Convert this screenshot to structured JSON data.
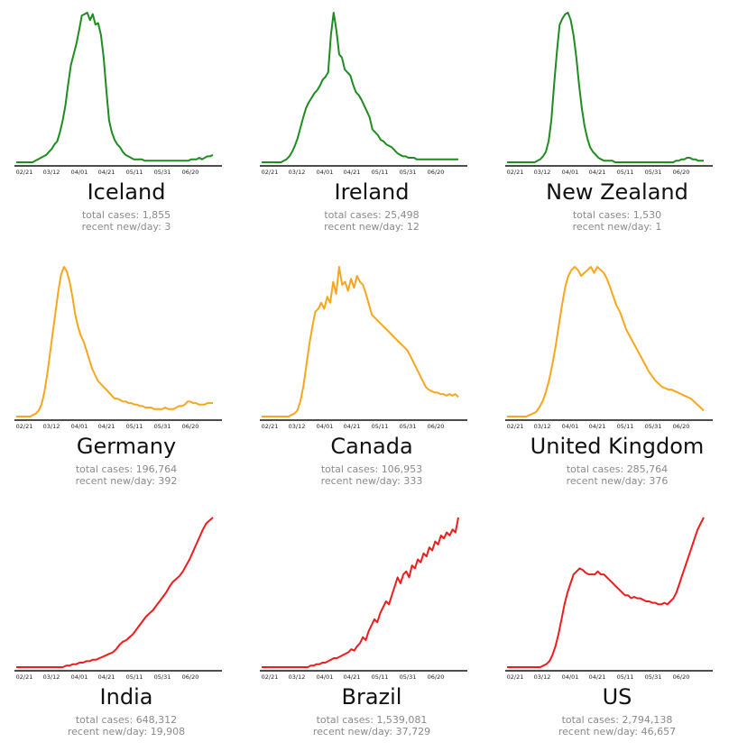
{
  "colors": {
    "low": "#1e8c1e",
    "mid": "#f8a61c",
    "high": "#ee1c1c"
  },
  "labels": {
    "total_prefix": "total cases: ",
    "recent_prefix": "recent new/day: "
  },
  "chart_data": [
    {
      "type": "line",
      "country": "Iceland",
      "color_key": "low",
      "total_cases": "1,855",
      "recent_new_per_day": "3",
      "x_ticks": [
        "02/21",
        "03/12",
        "04/01",
        "04/21",
        "05/11",
        "05/31",
        "06/20"
      ],
      "y": [
        0,
        0,
        0,
        0,
        0,
        0,
        0,
        1,
        2,
        3,
        4,
        5,
        7,
        9,
        12,
        14,
        20,
        28,
        38,
        52,
        65,
        72,
        79,
        88,
        98,
        99,
        100,
        95,
        99,
        92,
        93,
        85,
        70,
        48,
        28,
        20,
        15,
        12,
        10,
        7,
        5,
        4,
        3,
        2,
        2,
        2,
        2,
        1,
        1,
        1,
        1,
        1,
        1,
        1,
        1,
        1,
        1,
        1,
        1,
        1,
        1,
        1,
        1,
        1,
        2,
        2,
        2,
        3,
        2,
        3,
        4,
        4,
        5
      ]
    },
    {
      "type": "line",
      "country": "Ireland",
      "color_key": "low",
      "total_cases": "25,498",
      "recent_new_per_day": "12",
      "x_ticks": [
        "02/21",
        "03/12",
        "04/01",
        "04/21",
        "05/11",
        "05/31",
        "06/20"
      ],
      "y": [
        0,
        0,
        0,
        0,
        0,
        0,
        0,
        0,
        1,
        2,
        4,
        7,
        11,
        16,
        23,
        30,
        36,
        40,
        43,
        46,
        48,
        51,
        55,
        57,
        60,
        85,
        100,
        88,
        72,
        70,
        62,
        60,
        58,
        52,
        47,
        45,
        42,
        38,
        34,
        30,
        22,
        20,
        18,
        15,
        14,
        12,
        11,
        10,
        8,
        6,
        5,
        4,
        4,
        3,
        3,
        3,
        2,
        2,
        2,
        2,
        2,
        2,
        2,
        2,
        2,
        2,
        2,
        2,
        2,
        2,
        2,
        2
      ]
    },
    {
      "type": "line",
      "country": "New Zealand",
      "color_key": "low",
      "total_cases": "1,530",
      "recent_new_per_day": "1",
      "x_ticks": [
        "02/21",
        "03/12",
        "04/01",
        "04/21",
        "05/11",
        "05/31",
        "06/20"
      ],
      "y": [
        0,
        0,
        0,
        0,
        0,
        0,
        0,
        0,
        0,
        0,
        0,
        1,
        2,
        4,
        7,
        14,
        28,
        52,
        74,
        92,
        96,
        99,
        100,
        95,
        85,
        70,
        52,
        36,
        24,
        16,
        10,
        7,
        5,
        3,
        2,
        1,
        1,
        1,
        1,
        0,
        0,
        0,
        0,
        0,
        0,
        0,
        0,
        0,
        0,
        0,
        0,
        0,
        0,
        0,
        0,
        0,
        0,
        0,
        0,
        0,
        0,
        1,
        1,
        2,
        2,
        3,
        3,
        2,
        2,
        1,
        1,
        1
      ]
    },
    {
      "type": "line",
      "country": "Germany",
      "color_key": "mid",
      "total_cases": "196,764",
      "recent_new_per_day": "392",
      "x_ticks": [
        "02/21",
        "03/12",
        "04/01",
        "04/21",
        "05/11",
        "05/31",
        "06/20"
      ],
      "y": [
        0,
        0,
        0,
        0,
        0,
        0,
        1,
        2,
        4,
        8,
        16,
        28,
        42,
        56,
        70,
        84,
        95,
        100,
        97,
        90,
        80,
        68,
        60,
        54,
        50,
        44,
        38,
        32,
        28,
        24,
        22,
        20,
        18,
        16,
        14,
        12,
        12,
        11,
        10,
        10,
        9,
        9,
        8,
        8,
        7,
        7,
        6,
        6,
        6,
        5,
        5,
        5,
        5,
        6,
        5,
        5,
        5,
        6,
        7,
        7,
        8,
        10,
        10,
        9,
        9,
        8,
        8,
        8,
        9,
        9,
        9
      ]
    },
    {
      "type": "line",
      "country": "Canada",
      "color_key": "mid",
      "total_cases": "106,953",
      "recent_new_per_day": "333",
      "x_ticks": [
        "02/21",
        "03/12",
        "04/01",
        "04/21",
        "05/11",
        "05/31",
        "06/20"
      ],
      "y": [
        0,
        0,
        0,
        0,
        0,
        0,
        0,
        0,
        0,
        0,
        1,
        2,
        4,
        10,
        20,
        34,
        48,
        60,
        70,
        72,
        76,
        72,
        80,
        76,
        90,
        82,
        100,
        88,
        90,
        84,
        92,
        86,
        94,
        90,
        88,
        82,
        75,
        68,
        66,
        64,
        62,
        60,
        58,
        56,
        54,
        52,
        50,
        48,
        46,
        44,
        40,
        36,
        32,
        28,
        24,
        20,
        18,
        17,
        16,
        16,
        15,
        15,
        14,
        15,
        14,
        15,
        13
      ]
    },
    {
      "type": "line",
      "country": "United Kingdom",
      "color_key": "mid",
      "total_cases": "285,764",
      "recent_new_per_day": "376",
      "x_ticks": [
        "02/21",
        "03/12",
        "04/01",
        "04/21",
        "05/11",
        "05/31",
        "06/20"
      ],
      "y": [
        0,
        0,
        0,
        0,
        0,
        0,
        0,
        1,
        2,
        3,
        6,
        10,
        16,
        24,
        34,
        46,
        60,
        74,
        86,
        94,
        98,
        100,
        98,
        94,
        96,
        98,
        100,
        96,
        100,
        98,
        96,
        92,
        86,
        80,
        74,
        70,
        64,
        58,
        54,
        50,
        46,
        42,
        38,
        34,
        30,
        27,
        24,
        22,
        20,
        19,
        18,
        18,
        17,
        16,
        15,
        14,
        13,
        12,
        10,
        8,
        6,
        4
      ]
    },
    {
      "type": "line",
      "country": "India",
      "color_key": "high",
      "total_cases": "648,312",
      "recent_new_per_day": "19,908",
      "x_ticks": [
        "02/21",
        "03/12",
        "04/01",
        "04/21",
        "05/11",
        "05/31",
        "06/20"
      ],
      "y": [
        0,
        0,
        0,
        0,
        0,
        0,
        0,
        0,
        0,
        0,
        0,
        0,
        0,
        0,
        0,
        1,
        1,
        2,
        2,
        3,
        3,
        4,
        4,
        5,
        5,
        6,
        7,
        8,
        9,
        10,
        12,
        15,
        17,
        18,
        20,
        22,
        25,
        28,
        31,
        34,
        36,
        38,
        41,
        44,
        47,
        50,
        54,
        57,
        59,
        61,
        64,
        68,
        72,
        77,
        82,
        87,
        92,
        96,
        98,
        100
      ]
    },
    {
      "type": "line",
      "country": "Brazil",
      "color_key": "high",
      "total_cases": "1,539,081",
      "recent_new_per_day": "37,729",
      "x_ticks": [
        "02/21",
        "03/12",
        "04/01",
        "04/21",
        "05/11",
        "05/31",
        "06/20"
      ],
      "y": [
        0,
        0,
        0,
        0,
        0,
        0,
        0,
        0,
        0,
        0,
        0,
        0,
        0,
        0,
        0,
        0,
        0,
        1,
        1,
        2,
        2,
        3,
        3,
        4,
        5,
        6,
        6,
        7,
        8,
        9,
        10,
        12,
        11,
        14,
        16,
        20,
        18,
        24,
        28,
        32,
        30,
        36,
        40,
        44,
        42,
        48,
        54,
        60,
        56,
        62,
        64,
        60,
        68,
        66,
        72,
        70,
        76,
        74,
        80,
        78,
        84,
        82,
        88,
        86,
        90,
        88,
        92,
        90,
        100
      ]
    },
    {
      "type": "line",
      "country": "US",
      "color_key": "high",
      "total_cases": "2,794,138",
      "recent_new_per_day": "46,657",
      "x_ticks": [
        "02/21",
        "03/12",
        "04/01",
        "04/21",
        "05/11",
        "05/31",
        "06/20"
      ],
      "y": [
        0,
        0,
        0,
        0,
        0,
        0,
        0,
        0,
        0,
        0,
        0,
        0,
        1,
        2,
        4,
        8,
        14,
        22,
        32,
        42,
        50,
        56,
        62,
        64,
        66,
        65,
        63,
        62,
        62,
        62,
        64,
        62,
        62,
        60,
        58,
        56,
        54,
        52,
        50,
        48,
        48,
        46,
        47,
        46,
        46,
        45,
        44,
        44,
        43,
        43,
        42,
        42,
        43,
        42,
        44,
        46,
        50,
        56,
        62,
        68,
        74,
        80,
        86,
        92,
        96,
        100
      ]
    }
  ]
}
